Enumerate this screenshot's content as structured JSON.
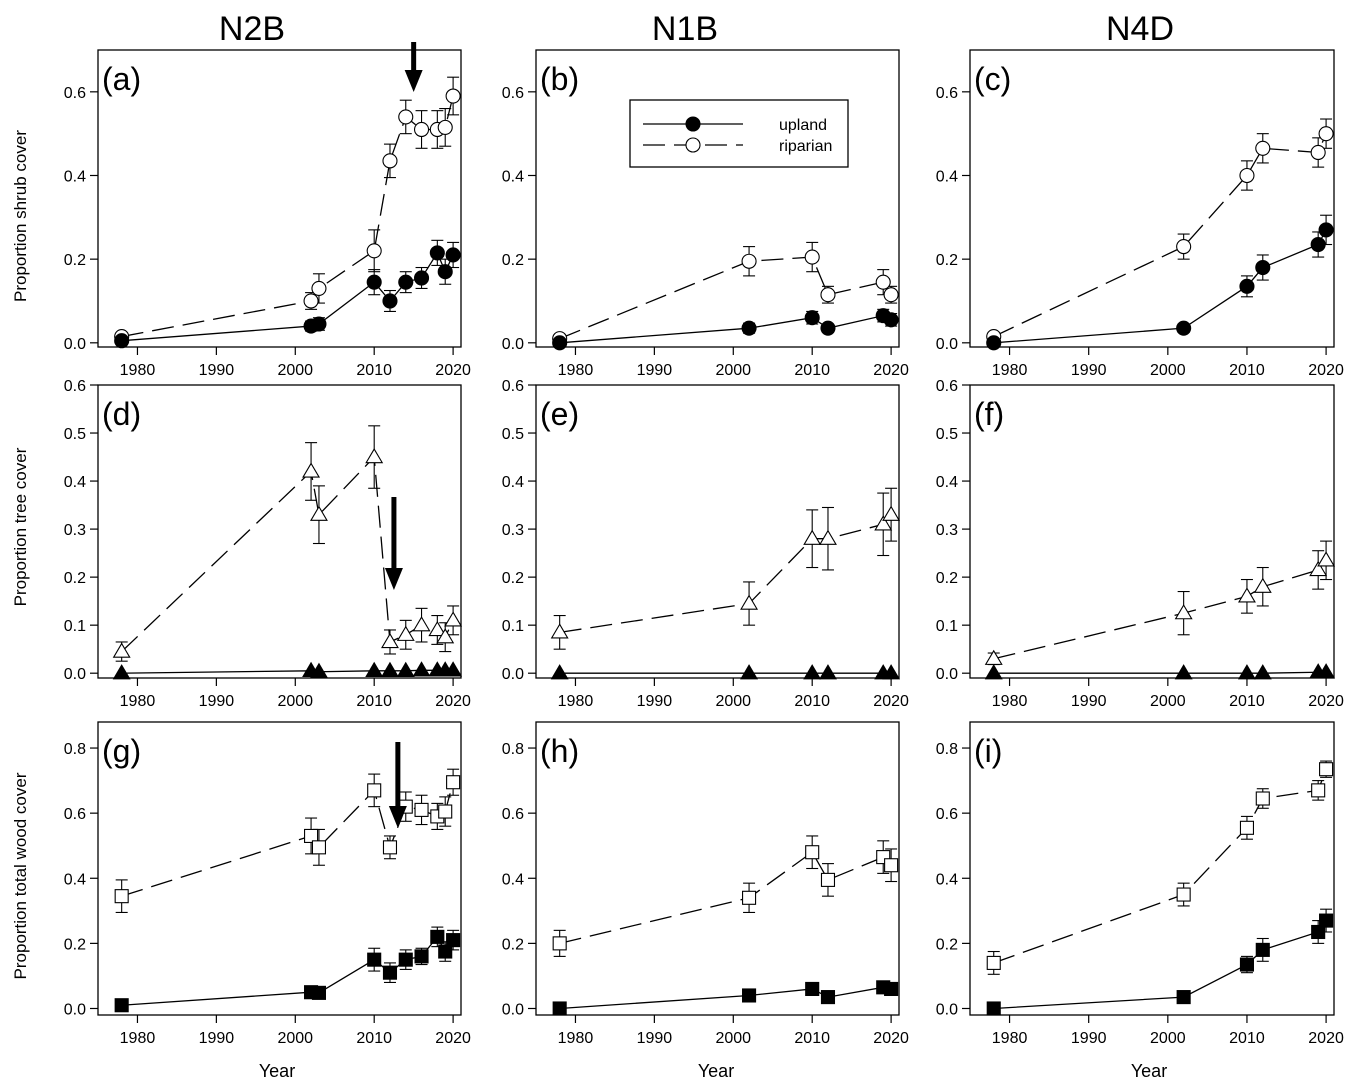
{
  "figure": {
    "column_titles": [
      "N2B",
      "N1B",
      "N4D"
    ],
    "row_ylabels": [
      "Proportion shrub cover",
      "Proportion tree cover",
      "Proportion total wood cover"
    ],
    "xlabel": "Year",
    "legend": {
      "upland": "upland",
      "riparian": "riparian"
    }
  },
  "chart_data": [
    {
      "panel": "(a)",
      "type": "line",
      "site": "N2B",
      "ylabel": "Proportion shrub cover",
      "xlim": [
        1975,
        2021
      ],
      "xticks": [
        1980,
        1990,
        2000,
        2010,
        2020
      ],
      "ylim": [
        -0.01,
        0.7
      ],
      "yticks": [
        0.0,
        0.2,
        0.4,
        0.6
      ],
      "tick_decimals": 1,
      "annotation_arrow_year": 2015,
      "series": [
        {
          "name": "upland",
          "marker": "circle",
          "fill": "#000000",
          "dash": "solid",
          "x": [
            1978,
            2002,
            2003,
            2010,
            2012,
            2014,
            2016,
            2018,
            2019,
            2020
          ],
          "y": [
            0.005,
            0.04,
            0.045,
            0.145,
            0.1,
            0.145,
            0.155,
            0.215,
            0.17,
            0.21
          ],
          "err": [
            0.005,
            0.012,
            0.015,
            0.03,
            0.025,
            0.025,
            0.025,
            0.03,
            0.03,
            0.03
          ]
        },
        {
          "name": "riparian",
          "marker": "circle",
          "fill": "#ffffff",
          "dash": "long",
          "x": [
            1978,
            2002,
            2003,
            2010,
            2012,
            2014,
            2016,
            2018,
            2019,
            2020
          ],
          "y": [
            0.015,
            0.1,
            0.13,
            0.22,
            0.435,
            0.54,
            0.51,
            0.51,
            0.515,
            0.59
          ],
          "err": [
            0.008,
            0.02,
            0.035,
            0.05,
            0.04,
            0.04,
            0.045,
            0.045,
            0.045,
            0.045
          ]
        }
      ]
    },
    {
      "panel": "(b)",
      "type": "line",
      "site": "N1B",
      "legend": true,
      "xlim": [
        1975,
        2021
      ],
      "xticks": [
        1980,
        1990,
        2000,
        2010,
        2020
      ],
      "ylim": [
        -0.01,
        0.7
      ],
      "yticks": [
        0.0,
        0.2,
        0.4,
        0.6
      ],
      "tick_decimals": 1,
      "series": [
        {
          "name": "upland",
          "marker": "circle",
          "fill": "#000000",
          "dash": "solid",
          "x": [
            1978,
            2002,
            2010,
            2012,
            2019,
            2020
          ],
          "y": [
            0.0,
            0.035,
            0.06,
            0.035,
            0.065,
            0.055
          ],
          "err": [
            0.003,
            0.012,
            0.015,
            0.01,
            0.015,
            0.015
          ]
        },
        {
          "name": "riparian",
          "marker": "circle",
          "fill": "#ffffff",
          "dash": "long",
          "x": [
            1978,
            2002,
            2010,
            2012,
            2019,
            2020
          ],
          "y": [
            0.01,
            0.195,
            0.205,
            0.115,
            0.145,
            0.115
          ],
          "err": [
            0.008,
            0.035,
            0.035,
            0.02,
            0.03,
            0.02
          ]
        }
      ]
    },
    {
      "panel": "(c)",
      "type": "line",
      "site": "N4D",
      "xlim": [
        1975,
        2021
      ],
      "xticks": [
        1980,
        1990,
        2000,
        2010,
        2020
      ],
      "ylim": [
        -0.01,
        0.7
      ],
      "yticks": [
        0.0,
        0.2,
        0.4,
        0.6
      ],
      "tick_decimals": 1,
      "series": [
        {
          "name": "upland",
          "marker": "circle",
          "fill": "#000000",
          "dash": "solid",
          "x": [
            1978,
            2002,
            2010,
            2012,
            2019,
            2020
          ],
          "y": [
            0.0,
            0.035,
            0.135,
            0.18,
            0.235,
            0.27
          ],
          "err": [
            0.003,
            0.01,
            0.025,
            0.03,
            0.03,
            0.035
          ]
        },
        {
          "name": "riparian",
          "marker": "circle",
          "fill": "#ffffff",
          "dash": "long",
          "x": [
            1978,
            2002,
            2010,
            2012,
            2019,
            2020
          ],
          "y": [
            0.015,
            0.23,
            0.4,
            0.465,
            0.455,
            0.5
          ],
          "err": [
            0.01,
            0.03,
            0.035,
            0.035,
            0.035,
            0.035
          ]
        }
      ]
    },
    {
      "panel": "(d)",
      "type": "line",
      "site": "N2B",
      "ylabel": "Proportion tree cover",
      "xlim": [
        1975,
        2021
      ],
      "xticks": [
        1980,
        1990,
        2000,
        2010,
        2020
      ],
      "ylim": [
        -0.01,
        0.6
      ],
      "yticks": [
        0.0,
        0.1,
        0.2,
        0.3,
        0.4,
        0.5,
        0.6
      ],
      "tick_decimals": 1,
      "annotation_arrow_year": 2012.5,
      "series": [
        {
          "name": "upland",
          "marker": "triangle",
          "fill": "#000000",
          "dash": "solid",
          "x": [
            1978,
            2002,
            2003,
            2010,
            2012,
            2014,
            2016,
            2018,
            2019,
            2020
          ],
          "y": [
            0.0,
            0.005,
            0.003,
            0.005,
            0.005,
            0.005,
            0.006,
            0.006,
            0.006,
            0.006
          ],
          "err": [
            0,
            0,
            0,
            0,
            0,
            0,
            0,
            0,
            0,
            0
          ]
        },
        {
          "name": "riparian",
          "marker": "triangle",
          "fill": "#ffffff",
          "dash": "long",
          "x": [
            1978,
            2002,
            2003,
            2010,
            2012,
            2014,
            2016,
            2018,
            2019,
            2020
          ],
          "y": [
            0.045,
            0.42,
            0.33,
            0.45,
            0.065,
            0.08,
            0.1,
            0.09,
            0.075,
            0.11
          ],
          "err": [
            0.02,
            0.06,
            0.06,
            0.065,
            0.025,
            0.03,
            0.035,
            0.03,
            0.03,
            0.03
          ]
        }
      ]
    },
    {
      "panel": "(e)",
      "type": "line",
      "site": "N1B",
      "xlim": [
        1975,
        2021
      ],
      "xticks": [
        1980,
        1990,
        2000,
        2010,
        2020
      ],
      "ylim": [
        -0.01,
        0.6
      ],
      "yticks": [
        0.0,
        0.1,
        0.2,
        0.3,
        0.4,
        0.5,
        0.6
      ],
      "tick_decimals": 1,
      "series": [
        {
          "name": "upland",
          "marker": "triangle",
          "fill": "#000000",
          "dash": "solid",
          "x": [
            1978,
            2002,
            2010,
            2012,
            2019,
            2020
          ],
          "y": [
            0.0,
            0.0,
            0.0,
            0.0,
            0.0,
            0.0
          ],
          "err": [
            0,
            0,
            0,
            0,
            0,
            0
          ]
        },
        {
          "name": "riparian",
          "marker": "triangle",
          "fill": "#ffffff",
          "dash": "long",
          "x": [
            1978,
            2002,
            2010,
            2012,
            2019,
            2020
          ],
          "y": [
            0.085,
            0.145,
            0.28,
            0.28,
            0.31,
            0.33
          ],
          "err": [
            0.035,
            0.045,
            0.06,
            0.065,
            0.065,
            0.055
          ]
        }
      ]
    },
    {
      "panel": "(f)",
      "type": "line",
      "site": "N4D",
      "xlim": [
        1975,
        2021
      ],
      "xticks": [
        1980,
        1990,
        2000,
        2010,
        2020
      ],
      "ylim": [
        -0.01,
        0.6
      ],
      "yticks": [
        0.0,
        0.1,
        0.2,
        0.3,
        0.4,
        0.5,
        0.6
      ],
      "tick_decimals": 1,
      "series": [
        {
          "name": "upland",
          "marker": "triangle",
          "fill": "#000000",
          "dash": "solid",
          "x": [
            1978,
            2002,
            2010,
            2012,
            2019,
            2020
          ],
          "y": [
            0.0,
            0.0,
            0.0,
            0.0,
            0.002,
            0.002
          ],
          "err": [
            0,
            0,
            0,
            0,
            0,
            0
          ]
        },
        {
          "name": "riparian",
          "marker": "triangle",
          "fill": "#ffffff",
          "dash": "long",
          "x": [
            1978,
            2002,
            2010,
            2012,
            2019,
            2020
          ],
          "y": [
            0.03,
            0.125,
            0.16,
            0.18,
            0.215,
            0.235
          ],
          "err": [
            0.012,
            0.045,
            0.035,
            0.04,
            0.04,
            0.04
          ]
        }
      ]
    },
    {
      "panel": "(g)",
      "type": "line",
      "site": "N2B",
      "ylabel": "Proportion total wood cover",
      "xlim": [
        1975,
        2021
      ],
      "xticks": [
        1980,
        1990,
        2000,
        2010,
        2020
      ],
      "ylim": [
        -0.02,
        0.88
      ],
      "yticks": [
        0.0,
        0.2,
        0.4,
        0.6,
        0.8
      ],
      "tick_decimals": 1,
      "annotation_arrow_year": 2013,
      "series": [
        {
          "name": "upland",
          "marker": "square",
          "fill": "#000000",
          "dash": "solid",
          "x": [
            1978,
            2002,
            2003,
            2010,
            2012,
            2014,
            2016,
            2018,
            2019,
            2020
          ],
          "y": [
            0.01,
            0.05,
            0.048,
            0.15,
            0.11,
            0.15,
            0.16,
            0.22,
            0.175,
            0.21
          ],
          "err": [
            0.005,
            0.01,
            0.01,
            0.035,
            0.03,
            0.03,
            0.025,
            0.03,
            0.03,
            0.03
          ]
        },
        {
          "name": "riparian",
          "marker": "square",
          "fill": "#ffffff",
          "dash": "long",
          "x": [
            1978,
            2002,
            2003,
            2010,
            2012,
            2014,
            2016,
            2018,
            2019,
            2020
          ],
          "y": [
            0.345,
            0.53,
            0.495,
            0.67,
            0.495,
            0.62,
            0.61,
            0.59,
            0.605,
            0.695
          ],
          "err": [
            0.05,
            0.055,
            0.055,
            0.05,
            0.035,
            0.045,
            0.045,
            0.04,
            0.045,
            0.04
          ]
        }
      ]
    },
    {
      "panel": "(h)",
      "type": "line",
      "site": "N1B",
      "xlim": [
        1975,
        2021
      ],
      "xticks": [
        1980,
        1990,
        2000,
        2010,
        2020
      ],
      "ylim": [
        -0.02,
        0.88
      ],
      "yticks": [
        0.0,
        0.2,
        0.4,
        0.6,
        0.8
      ],
      "tick_decimals": 1,
      "series": [
        {
          "name": "upland",
          "marker": "square",
          "fill": "#000000",
          "dash": "solid",
          "x": [
            1978,
            2002,
            2010,
            2012,
            2019,
            2020
          ],
          "y": [
            0.0,
            0.04,
            0.06,
            0.035,
            0.065,
            0.06
          ],
          "err": [
            0.003,
            0.012,
            0.015,
            0.015,
            0.015,
            0.015
          ]
        },
        {
          "name": "riparian",
          "marker": "square",
          "fill": "#ffffff",
          "dash": "long",
          "x": [
            1978,
            2002,
            2010,
            2012,
            2019,
            2020
          ],
          "y": [
            0.2,
            0.34,
            0.48,
            0.395,
            0.465,
            0.44
          ],
          "err": [
            0.04,
            0.045,
            0.05,
            0.05,
            0.05,
            0.05
          ]
        }
      ]
    },
    {
      "panel": "(i)",
      "type": "line",
      "site": "N4D",
      "xlim": [
        1975,
        2021
      ],
      "xticks": [
        1980,
        1990,
        2000,
        2010,
        2020
      ],
      "ylim": [
        -0.02,
        0.88
      ],
      "yticks": [
        0.0,
        0.2,
        0.4,
        0.6,
        0.8
      ],
      "tick_decimals": 1,
      "series": [
        {
          "name": "upland",
          "marker": "square",
          "fill": "#000000",
          "dash": "solid",
          "x": [
            1978,
            2002,
            2010,
            2012,
            2019,
            2020
          ],
          "y": [
            0.0,
            0.035,
            0.135,
            0.18,
            0.235,
            0.27
          ],
          "err": [
            0.003,
            0.01,
            0.025,
            0.035,
            0.035,
            0.035
          ]
        },
        {
          "name": "riparian",
          "marker": "square",
          "fill": "#ffffff",
          "dash": "long",
          "x": [
            1978,
            2002,
            2010,
            2012,
            2019,
            2020
          ],
          "y": [
            0.14,
            0.35,
            0.555,
            0.645,
            0.67,
            0.735
          ],
          "err": [
            0.035,
            0.035,
            0.035,
            0.03,
            0.03,
            0.025
          ]
        }
      ]
    }
  ]
}
